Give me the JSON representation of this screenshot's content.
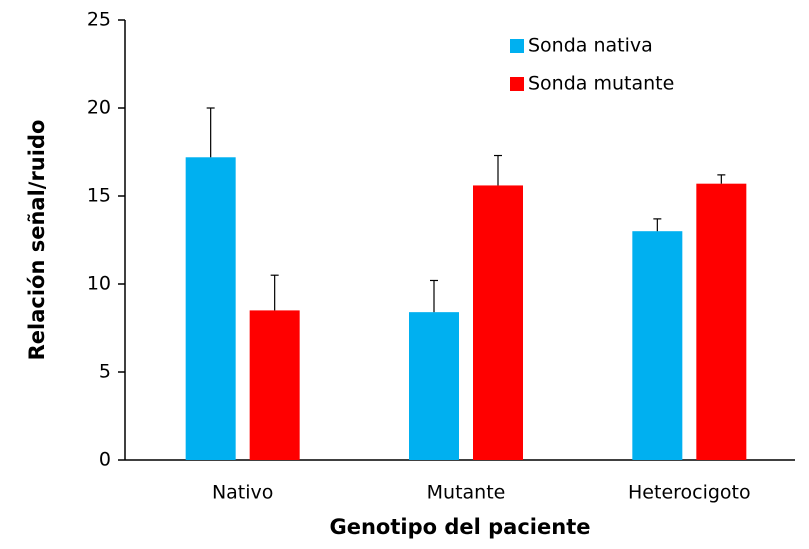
{
  "chart_data": {
    "type": "bar",
    "x_label": "Genotipo del paciente",
    "y_label": "Relación señal/ruido",
    "categories": [
      "Nativo",
      "Mutante",
      "Heterocigoto"
    ],
    "series": [
      {
        "name": "Sonda nativa",
        "color": "#00b0f0",
        "values": [
          17.2,
          8.4,
          13.0
        ],
        "errors": [
          2.8,
          1.8,
          0.7
        ]
      },
      {
        "name": "Sonda mutante",
        "color": "#ff0000",
        "values": [
          8.5,
          15.6,
          15.7
        ],
        "errors": [
          2.0,
          1.7,
          0.5
        ]
      }
    ],
    "ylim": [
      0,
      25
    ],
    "yticks": [
      0,
      5,
      10,
      15,
      20,
      25
    ],
    "legend": "top-right"
  }
}
